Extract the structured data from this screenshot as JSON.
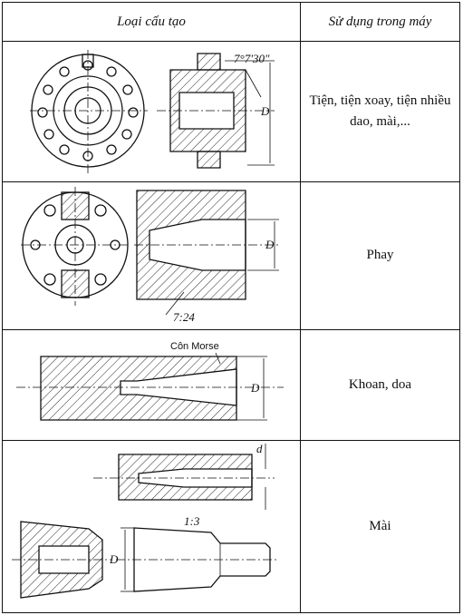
{
  "header": {
    "col_structure": "Loại cấu tạo",
    "col_usage": "Sử dụng trong máy"
  },
  "rows": [
    {
      "usage": "Tiện, tiện xoay, tiện nhiều dao, mài,...",
      "labels": {
        "angle": "7°7'30\"",
        "dim": "D"
      }
    },
    {
      "usage": "Phay",
      "labels": {
        "taper": "7:24",
        "dim": "D"
      }
    },
    {
      "usage": "Khoan, doa",
      "labels": {
        "caption": "Côn Morse",
        "dim": "D"
      }
    },
    {
      "usage": "Mài",
      "labels": {
        "taper": "1:3",
        "dim_small": "d",
        "dim": "D"
      }
    }
  ]
}
